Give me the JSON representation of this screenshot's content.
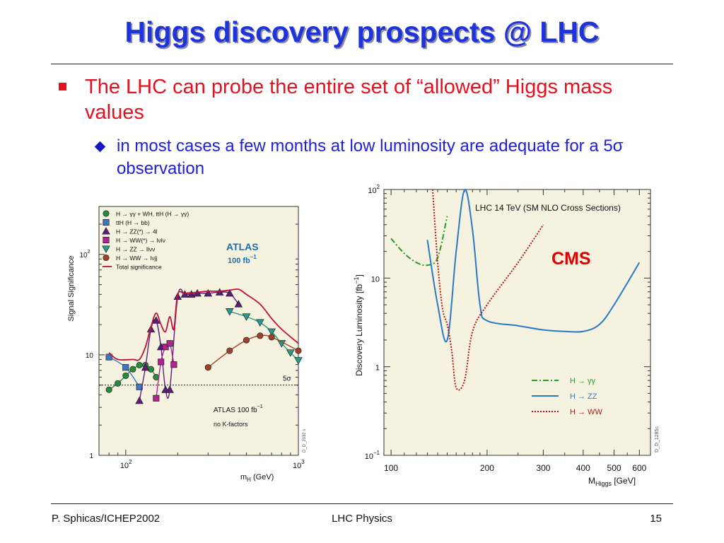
{
  "slide": {
    "title": "Higgs discovery prospects @ LHC",
    "bullet1": "The LHC can probe the entire set of “allowed” Higgs mass values",
    "bullet2": "in most cases a few months at low luminosity are adequate for a 5σ observation"
  },
  "footer": {
    "left": "P. Sphicas/ICHEP2002",
    "center": "LHC Physics",
    "page": "15"
  },
  "colors": {
    "title": "#1f34d8",
    "bullet1": "#e8101e",
    "bullet2": "#2020d8",
    "plot_bg": "#f5f2e0"
  },
  "chart_data": [
    {
      "type": "line",
      "log_x": true,
      "log_y": true,
      "xlim": [
        70,
        1000
      ],
      "ylim": [
        1,
        300
      ],
      "xlabel": "m",
      "xlabel_sub": "H",
      "xlabel_unit": " (GeV)",
      "ylabel": "Signal Significance",
      "x_ticks": [
        {
          "base": "10",
          "exp": "2"
        },
        {
          "base": "10",
          "exp": "3"
        }
      ],
      "y_ticks": [
        "1",
        "10"
      ],
      "y_tick_top": {
        "base": "10",
        "exp": "2"
      },
      "experiment": "ATLAS",
      "luminosity": "100 fb",
      "lumi_exp": "−1",
      "note_line1": "ATLAS 100 fb",
      "note_line1_exp": "−1",
      "note_line2": "no K-factors",
      "sigma_label": "5σ",
      "fig_id": "D_D_2032 s",
      "threshold": 5,
      "legend": [
        {
          "label": "H → γγ + WH, ttH (H → γγ)",
          "marker": "circle",
          "color": "#2a8a3e"
        },
        {
          "label": "ttH (H → bb)",
          "marker": "square",
          "color": "#3a78c0"
        },
        {
          "label": "H → ZZ(*) → 4l",
          "marker": "triangle-up",
          "color": "#5a1e78"
        },
        {
          "label": "H → WW(*) → lνlν",
          "marker": "square",
          "color": "#b0248e"
        },
        {
          "label": "H → ZZ → llνν",
          "marker": "triangle-down",
          "color": "#2a9a8a"
        },
        {
          "label": "H → WW → lνjj",
          "marker": "circle",
          "color": "#a0402a"
        },
        {
          "label": "Total significance",
          "marker": "line",
          "color": "#c0103a"
        }
      ],
      "series": [
        {
          "name": "H → γγ + WH, ttH (H → γγ)",
          "color": "#2a8a3e",
          "marker": "circle",
          "x": [
            80,
            90,
            100,
            110,
            120,
            130,
            140,
            150
          ],
          "y": [
            4.5,
            5.2,
            6.2,
            7.2,
            7.9,
            7.9,
            7.2,
            6.0
          ]
        },
        {
          "name": "ttH (H → bb)",
          "color": "#3a78c0",
          "marker": "square",
          "x": [
            80,
            100,
            120
          ],
          "y": [
            9.5,
            7.5,
            4.8
          ]
        },
        {
          "name": "H → ZZ(*) → 4l",
          "color": "#5a1e78",
          "marker": "triangle-up",
          "x": [
            120,
            130,
            140,
            150,
            160,
            170,
            180,
            200,
            220,
            240,
            260,
            300,
            350,
            400,
            450
          ],
          "y": [
            3.5,
            7.5,
            18,
            22,
            12,
            4.5,
            4.5,
            38,
            40,
            40,
            41,
            41,
            42,
            41,
            32
          ]
        },
        {
          "name": "H → WW(*) → lνlν",
          "color": "#b0248e",
          "marker": "square",
          "x": [
            150,
            160,
            170,
            180,
            190
          ],
          "y": [
            3.7,
            8.5,
            12,
            13,
            8
          ]
        },
        {
          "name": "H → ZZ → llνν",
          "color": "#2a9a8a",
          "marker": "triangle-down",
          "x": [
            400,
            500,
            600,
            700,
            800,
            900,
            1000
          ],
          "y": [
            27,
            24,
            21,
            17,
            13,
            10.5,
            8.8
          ]
        },
        {
          "name": "H → WW → lνjj",
          "color": "#a0402a",
          "marker": "circle",
          "x": [
            300,
            400,
            500,
            600,
            700,
            1000
          ],
          "y": [
            7.5,
            11,
            14,
            15.5,
            15,
            11
          ]
        },
        {
          "name": "Total significance",
          "color": "#c0103a",
          "marker": "none",
          "x": [
            80,
            90,
            110,
            120,
            130,
            140,
            150,
            160,
            170,
            180,
            190,
            200,
            220,
            260,
            300,
            350,
            400,
            450,
            500,
            600,
            700,
            800,
            1000
          ],
          "y": [
            10.5,
            9,
            9,
            9,
            12,
            19,
            26,
            20,
            17,
            24,
            18,
            40,
            41,
            42,
            43,
            43,
            44,
            45,
            40,
            32,
            23,
            18,
            13
          ]
        }
      ]
    },
    {
      "type": "line",
      "log_x": true,
      "log_y": true,
      "xlim": [
        95,
        650
      ],
      "ylim": [
        0.1,
        100
      ],
      "xlabel": "M",
      "xlabel_sub": "Higgs",
      "xlabel_unit": " [GeV]",
      "ylabel": "Discovery Luminosity [fb",
      "ylabel_exp": "−1",
      "ylabel_close": "]",
      "x_ticks": [
        "100",
        "200",
        "300",
        "400",
        "500",
        "600"
      ],
      "y_ticks": [
        {
          "base": "10",
          "exp": "−1"
        },
        {
          "base": "1",
          "exp": ""
        },
        {
          "base": "10",
          "exp": ""
        },
        {
          "base": "10",
          "exp": "2"
        }
      ],
      "experiment": "CMS",
      "title": "LHC 14  TeV (SM NLO Cross Sections)",
      "fig_id": "D_D_1285c",
      "series": [
        {
          "name": "H → γγ",
          "color": "#2a9a2a",
          "style": "dashdot",
          "x": [
            100,
            110,
            120,
            130,
            140,
            150
          ],
          "y": [
            28,
            19,
            15,
            14,
            17,
            50
          ]
        },
        {
          "name": "H → ZZ",
          "color": "#2a78c8",
          "style": "solid",
          "x": [
            130,
            140,
            150,
            160,
            170,
            180,
            190,
            200,
            250,
            300,
            350,
            400,
            450,
            500,
            600
          ],
          "y": [
            27,
            5,
            2,
            20,
            99,
            35,
            5,
            3.3,
            2.9,
            2.6,
            2.5,
            2.5,
            3,
            5,
            15
          ]
        },
        {
          "name": "H → WW",
          "color": "#b01820",
          "style": "dotted",
          "x": [
            135,
            140,
            145,
            150,
            155,
            160,
            170,
            180,
            200,
            250,
            300
          ],
          "y": [
            100,
            15,
            4.5,
            3,
            1.5,
            0.58,
            0.7,
            2.5,
            5,
            15,
            40
          ]
        }
      ]
    }
  ]
}
